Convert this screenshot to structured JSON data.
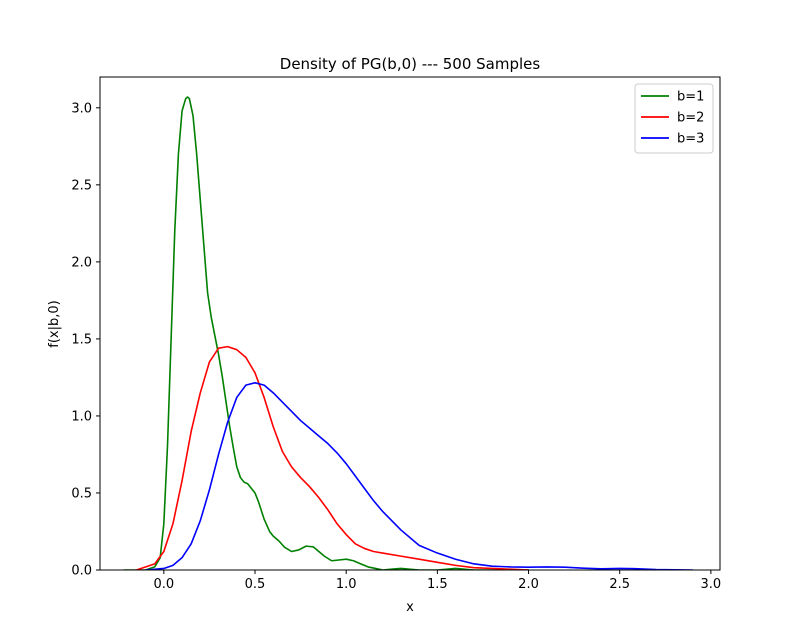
{
  "chart_data": {
    "type": "line",
    "title": "Density of PG(b,0) --- 500 Samples",
    "xlabel": "x",
    "ylabel": "f(x|b,0)",
    "xlim": [
      -0.35,
      3.05
    ],
    "ylim": [
      0,
      3.2
    ],
    "xticks": [
      0.0,
      0.5,
      1.0,
      1.5,
      2.0,
      2.5,
      3.0
    ],
    "xtick_labels": [
      "0.0",
      "0.5",
      "1.0",
      "1.5",
      "2.0",
      "2.5",
      "3.0"
    ],
    "yticks": [
      0.0,
      0.5,
      1.0,
      1.5,
      2.0,
      2.5,
      3.0
    ],
    "ytick_labels": [
      "0.0",
      "0.5",
      "1.0",
      "1.5",
      "2.0",
      "2.5",
      "3.0"
    ],
    "grid": false,
    "legend": "top-right",
    "series": [
      {
        "name": "b=1",
        "color": "#008000",
        "x": [
          -0.22,
          -0.1,
          -0.05,
          -0.02,
          0.0,
          0.02,
          0.04,
          0.06,
          0.08,
          0.1,
          0.12,
          0.13,
          0.14,
          0.16,
          0.18,
          0.2,
          0.22,
          0.24,
          0.26,
          0.28,
          0.3,
          0.32,
          0.34,
          0.36,
          0.38,
          0.4,
          0.42,
          0.44,
          0.46,
          0.48,
          0.5,
          0.52,
          0.55,
          0.58,
          0.6,
          0.63,
          0.66,
          0.7,
          0.74,
          0.78,
          0.82,
          0.85,
          0.88,
          0.92,
          0.96,
          1.0,
          1.04,
          1.08,
          1.12,
          1.16,
          1.2,
          1.25,
          1.3,
          1.4,
          1.5,
          1.6,
          1.7,
          2.0
        ],
        "y": [
          0.0,
          0.0,
          0.02,
          0.08,
          0.3,
          0.8,
          1.5,
          2.2,
          2.7,
          2.98,
          3.06,
          3.07,
          3.06,
          2.95,
          2.7,
          2.4,
          2.1,
          1.8,
          1.64,
          1.52,
          1.4,
          1.26,
          1.1,
          0.94,
          0.8,
          0.67,
          0.6,
          0.57,
          0.56,
          0.53,
          0.5,
          0.44,
          0.33,
          0.25,
          0.22,
          0.19,
          0.15,
          0.12,
          0.13,
          0.155,
          0.15,
          0.12,
          0.09,
          0.06,
          0.065,
          0.07,
          0.06,
          0.04,
          0.02,
          0.01,
          0.0,
          0.005,
          0.01,
          0.0,
          0.0,
          0.01,
          0.0,
          0.0
        ]
      },
      {
        "name": "b=2",
        "color": "#ff0000",
        "x": [
          -0.15,
          -0.05,
          0.0,
          0.05,
          0.1,
          0.15,
          0.2,
          0.25,
          0.3,
          0.35,
          0.4,
          0.45,
          0.5,
          0.55,
          0.6,
          0.65,
          0.7,
          0.75,
          0.8,
          0.85,
          0.9,
          0.95,
          1.0,
          1.05,
          1.1,
          1.15,
          1.2,
          1.3,
          1.4,
          1.5,
          1.6,
          1.7,
          1.8,
          1.9,
          2.0
        ],
        "y": [
          0.0,
          0.04,
          0.12,
          0.3,
          0.58,
          0.9,
          1.15,
          1.35,
          1.44,
          1.45,
          1.43,
          1.38,
          1.28,
          1.12,
          0.93,
          0.77,
          0.67,
          0.6,
          0.54,
          0.47,
          0.39,
          0.3,
          0.23,
          0.17,
          0.14,
          0.12,
          0.11,
          0.09,
          0.07,
          0.05,
          0.03,
          0.015,
          0.01,
          0.005,
          0.0
        ]
      },
      {
        "name": "b=3",
        "color": "#0000ff",
        "x": [
          -0.1,
          0.0,
          0.05,
          0.1,
          0.15,
          0.2,
          0.25,
          0.3,
          0.35,
          0.4,
          0.45,
          0.5,
          0.55,
          0.6,
          0.65,
          0.7,
          0.75,
          0.8,
          0.85,
          0.9,
          0.95,
          1.0,
          1.05,
          1.1,
          1.15,
          1.2,
          1.3,
          1.4,
          1.5,
          1.6,
          1.7,
          1.8,
          1.9,
          2.0,
          2.1,
          2.2,
          2.3,
          2.4,
          2.5,
          2.6,
          2.7,
          2.9
        ],
        "y": [
          0.0,
          0.01,
          0.03,
          0.08,
          0.17,
          0.32,
          0.52,
          0.75,
          0.96,
          1.12,
          1.2,
          1.215,
          1.2,
          1.15,
          1.09,
          1.03,
          0.97,
          0.92,
          0.87,
          0.82,
          0.76,
          0.69,
          0.61,
          0.53,
          0.45,
          0.38,
          0.26,
          0.16,
          0.11,
          0.07,
          0.04,
          0.025,
          0.02,
          0.018,
          0.02,
          0.018,
          0.012,
          0.008,
          0.01,
          0.008,
          0.003,
          0.0
        ]
      }
    ]
  }
}
